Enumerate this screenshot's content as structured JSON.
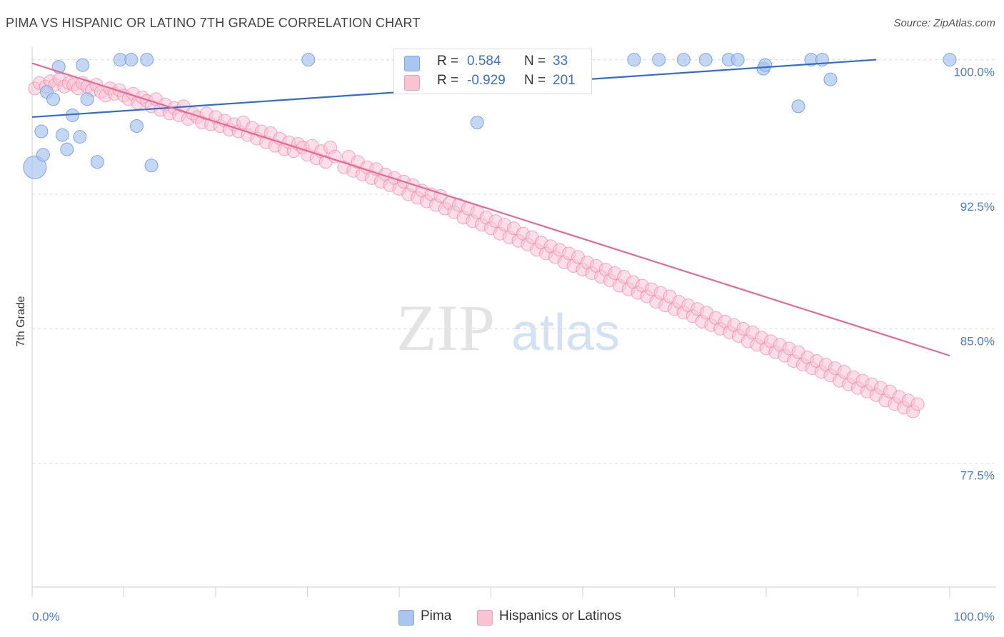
{
  "title": "PIMA VS HISPANIC OR LATINO 7TH GRADE CORRELATION CHART",
  "source": "Source: ZipAtlas.com",
  "watermark": {
    "zip": "ZIP",
    "atlas": "atlas"
  },
  "legend": {
    "rows": [
      {
        "r_label": "R =",
        "r_value": "0.584",
        "n_label": "N =",
        "n_value": "33",
        "color": "#a9c5f0",
        "border": "#7ea6e0"
      },
      {
        "r_label": "R =",
        "r_value": "-0.929",
        "n_label": "N =",
        "n_value": "201",
        "color": "#f8c3d3",
        "border": "#ee9bb6"
      }
    ]
  },
  "bottom_legend": [
    "Pima",
    "Hispanics or Latinos"
  ],
  "chart_data": {
    "type": "scatter",
    "xlabel": "",
    "ylabel": "7th Grade",
    "xlim": [
      0,
      100
    ],
    "ylim": [
      70.6,
      100.7
    ],
    "x_tick_labels": [
      "0.0%",
      "100.0%"
    ],
    "y_ticks": [
      {
        "value": 100.0,
        "label": "100.0%"
      },
      {
        "value": 92.5,
        "label": "92.5%"
      },
      {
        "value": 85.0,
        "label": "85.0%"
      },
      {
        "value": 77.5,
        "label": "77.5%"
      }
    ],
    "grid": true,
    "legend_position": "top-center",
    "series": [
      {
        "name": "Pima",
        "color": "#7ea6e0",
        "fill": "#a9c5f0",
        "trend": {
          "x0": 0,
          "y0": 96.8,
          "x1": 92,
          "y1": 100.0
        },
        "points": [
          [
            0.3,
            94.0,
            16
          ],
          [
            1.0,
            96.0,
            9
          ],
          [
            1.2,
            94.7,
            9
          ],
          [
            1.6,
            98.2,
            9
          ],
          [
            2.3,
            97.8,
            9
          ],
          [
            2.9,
            99.6,
            9
          ],
          [
            3.3,
            95.8,
            9
          ],
          [
            3.8,
            95.0,
            9
          ],
          [
            4.4,
            96.9,
            9
          ],
          [
            5.2,
            95.7,
            9
          ],
          [
            5.5,
            99.7,
            9
          ],
          [
            6.0,
            97.8,
            9
          ],
          [
            7.1,
            94.3,
            9
          ],
          [
            9.6,
            100.0,
            9
          ],
          [
            10.8,
            100.0,
            9
          ],
          [
            11.4,
            96.3,
            9
          ],
          [
            12.5,
            100.0,
            9
          ],
          [
            13.0,
            94.1,
            9
          ],
          [
            30.1,
            100.0,
            9
          ],
          [
            48.5,
            96.5,
            9
          ],
          [
            65.6,
            100.0,
            9
          ],
          [
            68.3,
            100.0,
            9
          ],
          [
            71.0,
            100.0,
            9
          ],
          [
            73.4,
            100.0,
            9
          ],
          [
            75.9,
            100.0,
            9
          ],
          [
            76.9,
            100.0,
            9
          ],
          [
            79.7,
            99.5,
            9
          ],
          [
            79.9,
            99.7,
            9
          ],
          [
            83.5,
            97.4,
            9
          ],
          [
            84.9,
            100.0,
            9
          ],
          [
            86.1,
            100.0,
            9
          ],
          [
            87.0,
            98.9,
            9
          ],
          [
            100.0,
            100.0,
            9
          ]
        ]
      },
      {
        "name": "Hispanics or Latinos",
        "color": "#e8769c",
        "fill": "#f8c3d3",
        "trend": {
          "x0": 0,
          "y0": 99.8,
          "x1": 100,
          "y1": 83.5
        },
        "points": [
          [
            0.3,
            98.4
          ],
          [
            0.8,
            98.7
          ],
          [
            1.5,
            98.5
          ],
          [
            2.0,
            98.8
          ],
          [
            2.5,
            98.6
          ],
          [
            3.0,
            98.9
          ],
          [
            3.5,
            98.5
          ],
          [
            4.0,
            98.7
          ],
          [
            4.5,
            98.6
          ],
          [
            5.0,
            98.4
          ],
          [
            5.5,
            98.7
          ],
          [
            6.0,
            98.5
          ],
          [
            6.5,
            98.3
          ],
          [
            7.0,
            98.6
          ],
          [
            7.5,
            98.2
          ],
          [
            8.0,
            98.0
          ],
          [
            8.5,
            98.4
          ],
          [
            9.0,
            98.1
          ],
          [
            9.5,
            98.3
          ],
          [
            10.0,
            98.0
          ],
          [
            10.5,
            97.8
          ],
          [
            11.0,
            98.1
          ],
          [
            11.5,
            97.6
          ],
          [
            12.0,
            97.9
          ],
          [
            12.5,
            97.7
          ],
          [
            13.0,
            97.4
          ],
          [
            13.5,
            97.8
          ],
          [
            14.0,
            97.2
          ],
          [
            14.5,
            97.5
          ],
          [
            15.0,
            97.0
          ],
          [
            15.5,
            97.3
          ],
          [
            16.0,
            96.9
          ],
          [
            16.5,
            97.4
          ],
          [
            17.0,
            96.7
          ],
          [
            17.5,
            97.0
          ],
          [
            18.0,
            96.8
          ],
          [
            18.5,
            96.5
          ],
          [
            19.0,
            97.0
          ],
          [
            19.5,
            96.4
          ],
          [
            20.0,
            96.8
          ],
          [
            20.5,
            96.3
          ],
          [
            21.0,
            96.6
          ],
          [
            21.5,
            96.1
          ],
          [
            22.0,
            96.4
          ],
          [
            22.5,
            96.0
          ],
          [
            23.0,
            96.5
          ],
          [
            23.5,
            95.8
          ],
          [
            24.0,
            96.2
          ],
          [
            24.5,
            95.6
          ],
          [
            25.0,
            96.0
          ],
          [
            25.5,
            95.4
          ],
          [
            26.0,
            95.9
          ],
          [
            26.5,
            95.2
          ],
          [
            27.0,
            95.6
          ],
          [
            27.5,
            95.0
          ],
          [
            28.0,
            95.4
          ],
          [
            28.5,
            94.9
          ],
          [
            29.0,
            95.3
          ],
          [
            29.5,
            95.1
          ],
          [
            30.0,
            94.7
          ],
          [
            30.5,
            95.2
          ],
          [
            31.0,
            94.5
          ],
          [
            31.5,
            94.9
          ],
          [
            32.0,
            94.3
          ],
          [
            32.5,
            95.1
          ],
          [
            33.0,
            94.6
          ],
          [
            34.0,
            94.0
          ],
          [
            34.5,
            94.6
          ],
          [
            35.0,
            93.8
          ],
          [
            35.5,
            94.3
          ],
          [
            36.0,
            93.6
          ],
          [
            36.5,
            94.0
          ],
          [
            37.0,
            93.4
          ],
          [
            37.5,
            93.9
          ],
          [
            38.0,
            93.2
          ],
          [
            38.5,
            93.6
          ],
          [
            39.0,
            93.0
          ],
          [
            39.5,
            93.4
          ],
          [
            40.0,
            92.8
          ],
          [
            40.5,
            93.2
          ],
          [
            41.0,
            92.5
          ],
          [
            41.5,
            93.0
          ],
          [
            42.0,
            92.3
          ],
          [
            42.5,
            92.7
          ],
          [
            43.0,
            92.1
          ],
          [
            43.5,
            92.5
          ],
          [
            44.0,
            91.9
          ],
          [
            44.5,
            92.4
          ],
          [
            45.0,
            91.7
          ],
          [
            45.5,
            92.0
          ],
          [
            46.0,
            91.5
          ],
          [
            46.5,
            91.9
          ],
          [
            47.0,
            91.2
          ],
          [
            47.5,
            91.7
          ],
          [
            48.0,
            91.0
          ],
          [
            48.5,
            91.5
          ],
          [
            49.0,
            90.8
          ],
          [
            49.5,
            91.2
          ],
          [
            50.0,
            90.6
          ],
          [
            50.5,
            91.0
          ],
          [
            51.0,
            90.3
          ],
          [
            51.5,
            90.8
          ],
          [
            52.0,
            90.1
          ],
          [
            52.5,
            90.6
          ],
          [
            53.0,
            89.9
          ],
          [
            53.5,
            90.3
          ],
          [
            54.0,
            89.7
          ],
          [
            54.5,
            90.1
          ],
          [
            55.0,
            89.4
          ],
          [
            55.5,
            89.8
          ],
          [
            56.0,
            89.2
          ],
          [
            56.5,
            89.6
          ],
          [
            57.0,
            89.0
          ],
          [
            57.5,
            89.4
          ],
          [
            58.0,
            88.7
          ],
          [
            58.5,
            89.2
          ],
          [
            59.0,
            88.5
          ],
          [
            59.5,
            89.0
          ],
          [
            60.0,
            88.3
          ],
          [
            60.5,
            88.7
          ],
          [
            61.0,
            88.1
          ],
          [
            61.5,
            88.5
          ],
          [
            62.0,
            87.9
          ],
          [
            62.5,
            88.3
          ],
          [
            63.0,
            87.7
          ],
          [
            63.5,
            88.1
          ],
          [
            64.0,
            87.4
          ],
          [
            64.5,
            87.9
          ],
          [
            65.0,
            87.2
          ],
          [
            65.5,
            87.6
          ],
          [
            66.0,
            87.0
          ],
          [
            66.5,
            87.4
          ],
          [
            67.0,
            86.8
          ],
          [
            67.5,
            87.2
          ],
          [
            68.0,
            86.5
          ],
          [
            68.5,
            87.0
          ],
          [
            69.0,
            86.3
          ],
          [
            69.5,
            86.8
          ],
          [
            70.0,
            86.1
          ],
          [
            70.5,
            86.5
          ],
          [
            71.0,
            85.9
          ],
          [
            71.5,
            86.3
          ],
          [
            72.0,
            85.7
          ],
          [
            72.5,
            86.1
          ],
          [
            73.0,
            85.4
          ],
          [
            73.5,
            85.9
          ],
          [
            74.0,
            85.2
          ],
          [
            74.5,
            85.6
          ],
          [
            75.0,
            85.0
          ],
          [
            75.5,
            85.4
          ],
          [
            76.0,
            84.8
          ],
          [
            76.5,
            85.2
          ],
          [
            77.0,
            84.6
          ],
          [
            77.5,
            85.0
          ],
          [
            78.0,
            84.3
          ],
          [
            78.5,
            84.8
          ],
          [
            79.0,
            84.1
          ],
          [
            79.5,
            84.5
          ],
          [
            80.0,
            83.9
          ],
          [
            80.5,
            84.3
          ],
          [
            81.0,
            83.7
          ],
          [
            81.5,
            84.1
          ],
          [
            82.0,
            83.5
          ],
          [
            82.5,
            83.9
          ],
          [
            83.0,
            83.2
          ],
          [
            83.5,
            83.7
          ],
          [
            84.0,
            83.0
          ],
          [
            84.5,
            83.4
          ],
          [
            85.0,
            82.8
          ],
          [
            85.5,
            83.2
          ],
          [
            86.0,
            82.6
          ],
          [
            86.5,
            83.0
          ],
          [
            87.0,
            82.4
          ],
          [
            87.5,
            82.8
          ],
          [
            88.0,
            82.1
          ],
          [
            88.5,
            82.6
          ],
          [
            89.0,
            81.9
          ],
          [
            89.5,
            82.3
          ],
          [
            90.0,
            81.7
          ],
          [
            90.5,
            82.1
          ],
          [
            91.0,
            81.5
          ],
          [
            91.5,
            81.9
          ],
          [
            92.0,
            81.3
          ],
          [
            92.5,
            81.7
          ],
          [
            93.0,
            81.0
          ],
          [
            93.5,
            81.5
          ],
          [
            94.0,
            80.8
          ],
          [
            94.5,
            81.2
          ],
          [
            95.0,
            80.6
          ],
          [
            95.5,
            81.0
          ],
          [
            96.0,
            80.4
          ],
          [
            96.5,
            80.8
          ]
        ]
      }
    ]
  }
}
